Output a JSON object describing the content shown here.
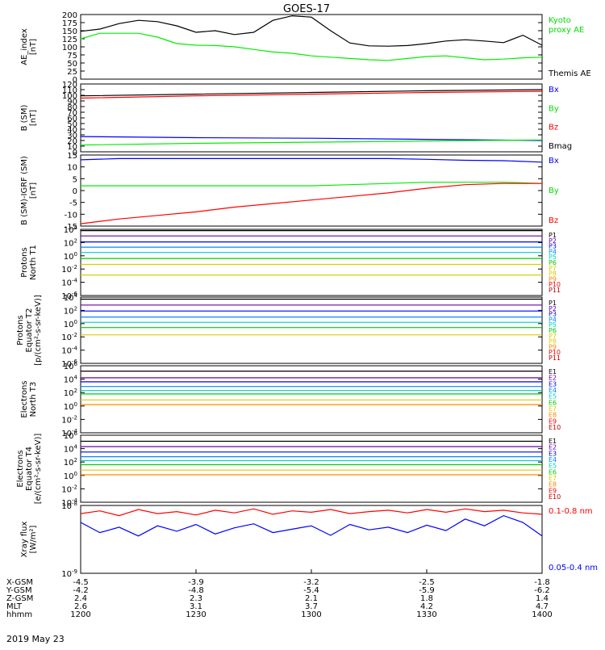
{
  "title": "GOES-17",
  "date_label": "2019 May 23",
  "colors": {
    "axis": "#000000",
    "red": "#ff0000",
    "green": "#00ee00",
    "blue": "#0000ff",
    "darkred": "#cc0000",
    "black": "#000000"
  },
  "x_axis": {
    "row_labels": [
      "X-GSM",
      "Y-GSM",
      "Z-GSM",
      "MLT",
      "hhmm"
    ],
    "columns": [
      {
        "values": [
          "-4.5",
          "-4.2",
          "2.4",
          "2.6",
          "1200"
        ]
      },
      {
        "values": [
          "-3.9",
          "-4.8",
          "2.3",
          "3.1",
          "1230"
        ]
      },
      {
        "values": [
          "-3.2",
          "-5.4",
          "2.1",
          "3.7",
          "1300"
        ]
      },
      {
        "values": [
          "-2.5",
          "-5.9",
          "1.8",
          "4.2",
          "1330"
        ]
      },
      {
        "values": [
          "-1.8",
          "-6.2",
          "1.4",
          "4.7",
          "1400"
        ]
      }
    ]
  },
  "chart_data": [
    {
      "type": "line",
      "ylabel": "AE_index\n[nT]",
      "ylim": [
        0,
        200
      ],
      "yticks": [
        "0",
        "25",
        "50",
        "75",
        "100",
        "125",
        "150",
        "175",
        "200"
      ],
      "legend": [
        {
          "text": "Kyoto\nproxy AE",
          "color": "#00dd00"
        },
        {
          "text": "Themis AE",
          "color": "#000000"
        }
      ],
      "x": [
        0,
        5,
        10,
        15,
        20,
        25,
        30,
        35,
        40,
        45,
        50,
        55,
        60,
        65,
        70,
        75,
        80,
        85,
        90,
        95,
        100,
        105,
        110,
        115,
        120
      ],
      "series": [
        {
          "name": "Themis AE",
          "color": "#000000",
          "values": [
            148,
            155,
            172,
            182,
            178,
            165,
            145,
            150,
            138,
            145,
            182,
            196,
            192,
            150,
            112,
            103,
            102,
            104,
            110,
            118,
            122,
            118,
            113,
            136,
            105
          ]
        },
        {
          "name": "Kyoto proxy AE",
          "color": "#00ee00",
          "values": [
            125,
            142,
            142,
            142,
            130,
            110,
            105,
            104,
            100,
            92,
            84,
            80,
            72,
            68,
            64,
            60,
            58,
            64,
            70,
            72,
            66,
            60,
            62,
            66,
            68
          ]
        }
      ]
    },
    {
      "type": "line",
      "ylabel": "B (SM)\n[nT]",
      "ylim": [
        0,
        120
      ],
      "yticks": [
        "0",
        "10",
        "20",
        "30",
        "40",
        "50",
        "60",
        "70",
        "80",
        "90",
        "100",
        "110",
        "120"
      ],
      "legend": [
        {
          "text": "Bx",
          "color": "#0000ff"
        },
        {
          "text": "By",
          "color": "#00dd00"
        },
        {
          "text": "Bz",
          "color": "#ff0000"
        },
        {
          "text": "Bmag",
          "color": "#000000"
        }
      ],
      "x": [
        0,
        30,
        60,
        90,
        120
      ],
      "series": [
        {
          "name": "Bx",
          "color": "#0000ff",
          "values": [
            27,
            25,
            24,
            22,
            20
          ]
        },
        {
          "name": "By",
          "color": "#00ee00",
          "values": [
            12,
            15,
            17,
            19,
            21
          ]
        },
        {
          "name": "Bz",
          "color": "#ff0000",
          "values": [
            95,
            99,
            102,
            105,
            107
          ]
        },
        {
          "name": "Bmag",
          "color": "#000000",
          "values": [
            99,
            102,
            105,
            108,
            110
          ]
        }
      ]
    },
    {
      "type": "line",
      "ylabel": "B (SM)-IGRF (SM)\n[nT]",
      "ylim": [
        -15,
        15
      ],
      "yticks": [
        "-15",
        "-10",
        "-5",
        "0",
        "5",
        "10",
        "15"
      ],
      "legend": [
        {
          "text": "Bx",
          "color": "#0000ff"
        },
        {
          "text": "By",
          "color": "#00dd00"
        },
        {
          "text": "Bz",
          "color": "#ff0000"
        }
      ],
      "x": [
        0,
        10,
        20,
        30,
        40,
        50,
        60,
        70,
        80,
        90,
        100,
        110,
        120
      ],
      "series": [
        {
          "name": "Bx",
          "color": "#0000ff",
          "values": [
            13,
            13.5,
            13.5,
            13.5,
            13.5,
            13.5,
            13.5,
            13.5,
            13.5,
            13.2,
            12.8,
            12.6,
            12
          ]
        },
        {
          "name": "By",
          "color": "#00ee00",
          "values": [
            2,
            2,
            2,
            2,
            2,
            2,
            2,
            2.5,
            3,
            3.5,
            3.5,
            3.5,
            3
          ]
        },
        {
          "name": "Bz",
          "color": "#ff0000",
          "values": [
            -14,
            -12,
            -10.5,
            -9,
            -7,
            -5.5,
            -4,
            -2.5,
            -1,
            1,
            2.5,
            3,
            3
          ]
        }
      ]
    },
    {
      "type": "line",
      "log": true,
      "ylabel": "Protons\nNorth T1",
      "ylim_exp": [
        -6,
        4
      ],
      "ytick_exps": [
        -6,
        -4,
        -2,
        0,
        2,
        4
      ],
      "legend": [
        {
          "text": "P1",
          "color": "#000000"
        },
        {
          "text": "P2",
          "color": "#6a00aa"
        },
        {
          "text": "P3",
          "color": "#0000ff"
        },
        {
          "text": "P4",
          "color": "#0088ff"
        },
        {
          "text": "P5",
          "color": "#00cccc"
        },
        {
          "text": "P6",
          "color": "#00cc00"
        },
        {
          "text": "P7",
          "color": "#ddcc00"
        },
        {
          "text": "P8",
          "color": "#ddcc00"
        },
        {
          "text": "P9",
          "color": "#ff8800"
        },
        {
          "text": "P10",
          "color": "#ff0000"
        },
        {
          "text": "P11",
          "color": "#bb0000"
        }
      ],
      "x": [
        0,
        120
      ],
      "series": [
        {
          "name": "P1",
          "color": "#000000",
          "values": [
            3.8,
            3.8
          ]
        },
        {
          "name": "P2",
          "color": "#6a00aa",
          "values": [
            3.0,
            3.0
          ]
        },
        {
          "name": "P3",
          "color": "#0000ff",
          "values": [
            2.1,
            2.1
          ]
        },
        {
          "name": "P4",
          "color": "#0088ff",
          "values": [
            1.3,
            1.3
          ]
        },
        {
          "name": "P5",
          "color": "#00cccc",
          "values": [
            0.5,
            0.5
          ]
        },
        {
          "name": "P6",
          "color": "#00cc00",
          "values": [
            -0.4,
            -0.4
          ]
        },
        {
          "name": "P7",
          "color": "#ddcc00",
          "values": [
            -1.3,
            -1.3
          ]
        },
        {
          "name": "P8",
          "color": "#ddcc00",
          "values": [
            -2.9,
            -2.9
          ]
        }
      ]
    },
    {
      "type": "line",
      "log": true,
      "ylabel": "Protons\nEquator T2\n[p/(cm²-s-sr-keV)]",
      "ylim_exp": [
        -6,
        4
      ],
      "ytick_exps": [
        -6,
        -4,
        -2,
        0,
        2,
        4
      ],
      "legend": [
        {
          "text": "P1",
          "color": "#000000"
        },
        {
          "text": "P2",
          "color": "#6a00aa"
        },
        {
          "text": "P3",
          "color": "#0000ff"
        },
        {
          "text": "P4",
          "color": "#0088ff"
        },
        {
          "text": "P5",
          "color": "#00cccc"
        },
        {
          "text": "P6",
          "color": "#00cc00"
        },
        {
          "text": "P7",
          "color": "#ddcc00"
        },
        {
          "text": "P8",
          "color": "#ddcc00"
        },
        {
          "text": "P9",
          "color": "#ff8800"
        },
        {
          "text": "P10",
          "color": "#ff0000"
        },
        {
          "text": "P11",
          "color": "#bb0000"
        }
      ],
      "x": [
        0,
        120
      ],
      "series": [
        {
          "name": "P1",
          "color": "#000000",
          "values": [
            3.7,
            3.7
          ]
        },
        {
          "name": "P2",
          "color": "#6a00aa",
          "values": [
            2.8,
            2.8
          ]
        },
        {
          "name": "P3",
          "color": "#0000ff",
          "values": [
            1.9,
            1.9
          ]
        },
        {
          "name": "P4",
          "color": "#0088ff",
          "values": [
            1.0,
            1.0
          ]
        },
        {
          "name": "P5",
          "color": "#00cccc",
          "values": [
            0.2,
            0.2
          ]
        },
        {
          "name": "P6",
          "color": "#00cc00",
          "values": [
            -0.6,
            -0.6
          ]
        },
        {
          "name": "P7",
          "color": "#ddcc00",
          "values": [
            -1.7,
            -1.7
          ]
        }
      ]
    },
    {
      "type": "line",
      "log": true,
      "ylabel": "Electrons\nNorth T3",
      "ylim_exp": [
        -4,
        6
      ],
      "ytick_exps": [
        -4,
        -2,
        0,
        2,
        4,
        6
      ],
      "legend": [
        {
          "text": "E1",
          "color": "#000000"
        },
        {
          "text": "E2",
          "color": "#6a00aa"
        },
        {
          "text": "E3",
          "color": "#0000ff"
        },
        {
          "text": "E4",
          "color": "#0088ff"
        },
        {
          "text": "E5",
          "color": "#00cccc"
        },
        {
          "text": "E6",
          "color": "#00cc00"
        },
        {
          "text": "E7",
          "color": "#ddcc00"
        },
        {
          "text": "E8",
          "color": "#ff8800"
        },
        {
          "text": "E9",
          "color": "#ff0000"
        },
        {
          "text": "E10",
          "color": "#bb0000"
        }
      ],
      "x": [
        0,
        120
      ],
      "series": [
        {
          "name": "E1",
          "color": "#000000",
          "values": [
            5.2,
            5.2
          ]
        },
        {
          "name": "E2",
          "color": "#6a00aa",
          "values": [
            4.2,
            4.2
          ]
        },
        {
          "name": "E3",
          "color": "#0000ff",
          "values": [
            3.6,
            3.6
          ]
        },
        {
          "name": "E4",
          "color": "#0088ff",
          "values": [
            2.9,
            2.9
          ]
        },
        {
          "name": "E5",
          "color": "#00cccc",
          "values": [
            2.3,
            2.3
          ]
        },
        {
          "name": "E6",
          "color": "#00cc00",
          "values": [
            1.8,
            1.8
          ]
        },
        {
          "name": "E7",
          "color": "#ddcc00",
          "values": [
            0.9,
            0.9
          ]
        },
        {
          "name": "E8",
          "color": "#ff8800",
          "values": [
            0.2,
            0.2
          ]
        }
      ]
    },
    {
      "type": "line",
      "log": true,
      "ylabel": "Electrons\nEquator T4\n[e/(cm²-s-sr-keV)]",
      "ylim_exp": [
        -4,
        6
      ],
      "ytick_exps": [
        -4,
        -2,
        0,
        2,
        4,
        6
      ],
      "legend": [
        {
          "text": "E1",
          "color": "#000000"
        },
        {
          "text": "E2",
          "color": "#6a00aa"
        },
        {
          "text": "E3",
          "color": "#0000ff"
        },
        {
          "text": "E4",
          "color": "#0088ff"
        },
        {
          "text": "E5",
          "color": "#00cccc"
        },
        {
          "text": "E6",
          "color": "#00cc00"
        },
        {
          "text": "E7",
          "color": "#ddcc00"
        },
        {
          "text": "E8",
          "color": "#ff8800"
        },
        {
          "text": "E9",
          "color": "#ff0000"
        },
        {
          "text": "E10",
          "color": "#bb0000"
        }
      ],
      "x": [
        0,
        120
      ],
      "series": [
        {
          "name": "E1",
          "color": "#000000",
          "values": [
            5.1,
            5.1
          ]
        },
        {
          "name": "E2",
          "color": "#6a00aa",
          "values": [
            4.3,
            4.3
          ]
        },
        {
          "name": "E3",
          "color": "#0000ff",
          "values": [
            3.5,
            3.5
          ]
        },
        {
          "name": "E4",
          "color": "#0088ff",
          "values": [
            2.8,
            2.8
          ]
        },
        {
          "name": "E5",
          "color": "#00cccc",
          "values": [
            2.2,
            2.2
          ]
        },
        {
          "name": "E6",
          "color": "#00cc00",
          "values": [
            1.6,
            1.6
          ]
        },
        {
          "name": "E7",
          "color": "#ddcc00",
          "values": [
            0.8,
            0.8
          ]
        },
        {
          "name": "E8",
          "color": "#ff8800",
          "values": [
            0.1,
            0.1
          ]
        }
      ]
    },
    {
      "type": "line",
      "log": true,
      "ylabel": "Xray flux\n[W/m²]",
      "ylim_exp": [
        -9,
        -8
      ],
      "ytick_exps": [
        -9,
        -8
      ],
      "legend": [
        {
          "text": "0.1-0.8 nm",
          "color": "#ff0000"
        },
        {
          "text": "0.05-0.4 nm",
          "color": "#0000ff"
        }
      ],
      "x": [
        0,
        5,
        10,
        15,
        20,
        25,
        30,
        35,
        40,
        45,
        50,
        55,
        60,
        65,
        70,
        75,
        80,
        85,
        90,
        95,
        100,
        105,
        110,
        115,
        120
      ],
      "series": [
        {
          "name": "0.1-0.8 nm",
          "color": "#ff0000",
          "values": [
            -8.12,
            -8.08,
            -8.15,
            -8.06,
            -8.12,
            -8.09,
            -8.14,
            -8.07,
            -8.11,
            -8.05,
            -8.13,
            -8.08,
            -8.1,
            -8.06,
            -8.12,
            -8.09,
            -8.07,
            -8.11,
            -8.06,
            -8.1,
            -8.05,
            -8.09,
            -8.07,
            -8.11,
            -8.13
          ]
        },
        {
          "name": "0.05-0.4 nm",
          "color": "#0000ff",
          "values": [
            -8.25,
            -8.4,
            -8.32,
            -8.45,
            -8.3,
            -8.38,
            -8.28,
            -8.42,
            -8.33,
            -8.27,
            -8.4,
            -8.35,
            -8.3,
            -8.44,
            -8.28,
            -8.36,
            -8.32,
            -8.4,
            -8.29,
            -8.37,
            -8.2,
            -8.3,
            -8.15,
            -8.25,
            -8.45
          ]
        }
      ]
    }
  ]
}
